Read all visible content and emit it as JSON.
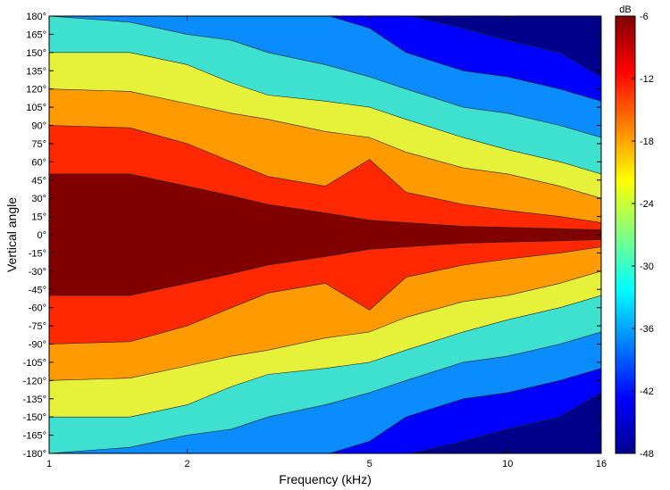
{
  "chart_data": {
    "type": "heatmap",
    "title": "",
    "xlabel": "Frequency (kHz)",
    "ylabel": "Vertical angle",
    "x_scale": "log",
    "xlim": [
      1,
      16
    ],
    "ylim": [
      -180,
      180
    ],
    "x_ticks": [
      1,
      2,
      5,
      10,
      16
    ],
    "x_tick_labels": [
      "1",
      "2",
      "5",
      "10",
      "16"
    ],
    "y_ticks": [
      180,
      165,
      150,
      135,
      120,
      105,
      90,
      75,
      60,
      45,
      30,
      15,
      0,
      -15,
      -30,
      -45,
      -60,
      -75,
      -90,
      -105,
      -120,
      -135,
      -150,
      -165,
      -180
    ],
    "y_tick_labels": [
      "180°",
      "165°",
      "150°",
      "135°",
      "120°",
      "105°",
      "90°",
      "75°",
      "60°",
      "45°",
      "30°",
      "15°",
      "0°",
      "-15°",
      "-30°",
      "-45°",
      "-60°",
      "-75°",
      "-90°",
      "-105°",
      "-120°",
      "-135°",
      "-150°",
      "-165°",
      "-180°"
    ],
    "colorbar": {
      "label": "dB",
      "range": [
        -48,
        -6
      ],
      "ticks": [
        -6,
        -12,
        -18,
        -24,
        -30,
        -36,
        -42,
        -48
      ],
      "tick_labels": [
        "-6",
        "-12",
        "-18",
        "-24",
        "-30",
        "-36",
        "-42",
        "-48"
      ],
      "levels": [
        {
          "min": -9,
          "max": -6,
          "color": "#800000"
        },
        {
          "min": -15,
          "max": -9,
          "color": "#ff2800"
        },
        {
          "min": -21,
          "max": -15,
          "color": "#ff9a00"
        },
        {
          "min": -27,
          "max": -21,
          "color": "#e6f23a"
        },
        {
          "min": -33,
          "max": -27,
          "color": "#3ee0d0"
        },
        {
          "min": -39,
          "max": -33,
          "color": "#0a8cff"
        },
        {
          "min": -45,
          "max": -39,
          "color": "#0000ff"
        },
        {
          "min": -48,
          "max": -45,
          "color": "#00008b"
        }
      ],
      "gradient": [
        "#00008f",
        "#0000ff",
        "#0080ff",
        "#00ffff",
        "#80ff80",
        "#ffff00",
        "#ff8000",
        "#ff0000",
        "#800000"
      ]
    },
    "frequencies_khz": [
      1,
      1.5,
      2,
      2.5,
      3,
      4,
      5,
      6,
      8,
      10,
      13,
      16
    ],
    "contour_boundaries": [
      {
        "level": -9,
        "angles": [
          50,
          50,
          40,
          32,
          25,
          18,
          12,
          10,
          7,
          6,
          5,
          4
        ]
      },
      {
        "level": -15,
        "angles": [
          90,
          88,
          75,
          60,
          48,
          40,
          62,
          35,
          25,
          20,
          15,
          10
        ]
      },
      {
        "level": -21,
        "angles": [
          120,
          118,
          108,
          100,
          95,
          85,
          80,
          68,
          55,
          50,
          40,
          30
        ]
      },
      {
        "level": -27,
        "angles": [
          150,
          150,
          140,
          125,
          115,
          110,
          105,
          95,
          80,
          70,
          60,
          50
        ]
      },
      {
        "level": -33,
        "angles": [
          180,
          175,
          165,
          160,
          150,
          140,
          130,
          120,
          105,
          100,
          90,
          80
        ]
      },
      {
        "level": -39,
        "angles": [
          181,
          181,
          181,
          181,
          181,
          181,
          170,
          150,
          135,
          130,
          120,
          110
        ]
      },
      {
        "level": -45,
        "angles": [
          181,
          181,
          181,
          181,
          181,
          181,
          181,
          181,
          170,
          160,
          150,
          130
        ]
      }
    ]
  }
}
